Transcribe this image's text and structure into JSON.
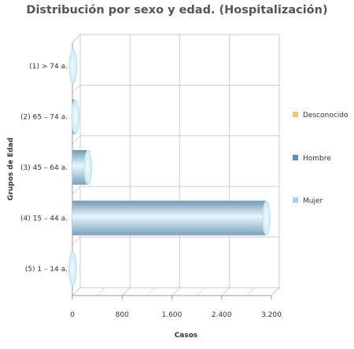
{
  "chart_data": {
    "type": "bar",
    "orientation": "horizontal",
    "title": "Distribución por sexo y edad. (Hospitalización)",
    "xlabel": "Casos",
    "ylabel": "Grupos de Edad",
    "categories": [
      "(1) > 74 a.",
      "(2) 65 – 74 a.",
      "(3) 45 – 64 a.",
      "(4) 15 – 44 a.",
      "(5) 1 – 14 a."
    ],
    "series": [
      {
        "name": "Desconocido",
        "color": "#e8c880",
        "values": [
          0,
          0,
          0,
          0,
          0
        ]
      },
      {
        "name": "Hombre",
        "color": "#5a90b8",
        "values": [
          0,
          30,
          230,
          3100,
          0
        ]
      },
      {
        "name": "Mujer",
        "color": "#a8d0e8",
        "values": [
          10,
          20,
          20,
          20,
          5
        ]
      }
    ],
    "xlim": [
      0,
      3200
    ],
    "xticks": [
      0,
      800,
      1600,
      2400,
      3200
    ],
    "xtick_labels": [
      "0",
      "800",
      "1.600",
      "2.400",
      "3.200"
    ],
    "grid": true,
    "legend_position": "right"
  }
}
